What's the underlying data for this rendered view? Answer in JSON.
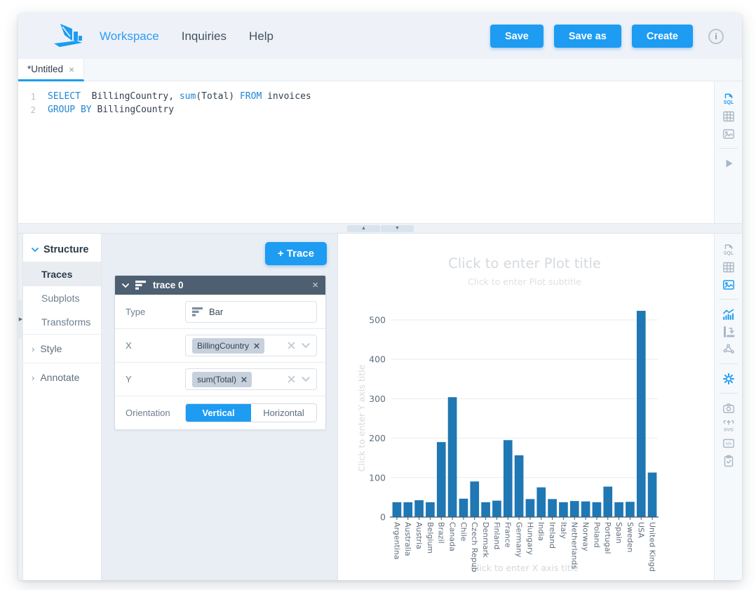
{
  "navbar": {
    "links": [
      {
        "label": "Workspace",
        "active": true
      },
      {
        "label": "Inquiries",
        "active": false
      },
      {
        "label": "Help",
        "active": false
      }
    ],
    "save_label": "Save",
    "save_as_label": "Save as",
    "create_label": "Create"
  },
  "tabs": [
    {
      "label": "*Untitled"
    }
  ],
  "editor": {
    "lines": [
      {
        "number": "1",
        "tokens": [
          {
            "text": "SELECT",
            "type": "kw"
          },
          {
            "text": "  BillingCountry, ",
            "type": "pl"
          },
          {
            "text": "sum",
            "type": "kw"
          },
          {
            "text": "(Total) ",
            "type": "pl"
          },
          {
            "text": "FROM",
            "type": "kw"
          },
          {
            "text": " invoices",
            "type": "pl"
          }
        ]
      },
      {
        "number": "2",
        "tokens": [
          {
            "text": "GROUP BY",
            "type": "kw"
          },
          {
            "text": " BillingCountry",
            "type": "pl"
          }
        ]
      }
    ]
  },
  "icons": {
    "close": "×",
    "chevron_right": "›",
    "collapse_up": "▲",
    "collapse_down": "▼",
    "collapse_right": "▶",
    "info": "i"
  },
  "sidebar": {
    "structure_label": "Structure",
    "items": [
      {
        "label": "Traces",
        "active": true
      },
      {
        "label": "Subplots",
        "active": false
      },
      {
        "label": "Transforms",
        "active": false
      }
    ],
    "style_label": "Style",
    "annotate_label": "Annotate"
  },
  "trace_panel": {
    "add_trace_label": "+ Trace",
    "trace_card": {
      "title": "trace 0",
      "type_label": "Type",
      "type_value": "Bar",
      "x_label": "X",
      "x_chip": "BillingCountry",
      "y_label": "Y",
      "y_chip": "sum(Total)",
      "orientation_label": "Orientation",
      "vertical_label": "Vertical",
      "horizontal_label": "Horizontal",
      "orientation_selected": "Vertical"
    }
  },
  "editor_toolbar": {
    "icons": [
      "sql",
      "table",
      "image",
      "run"
    ],
    "active": "sql"
  },
  "chart_toolbar": {
    "icons": [
      "sql",
      "table",
      "image",
      "traces-chart",
      "subplots",
      "transforms",
      "settings",
      "camera",
      "svg-export",
      "code",
      "clipboard"
    ],
    "active": "image"
  },
  "colors": {
    "accent_blue": "#1d9cf2",
    "bar_blue": "#1f77b4",
    "card_header": "#4d5f71"
  },
  "chart_data": {
    "type": "bar",
    "title_placeholder": "Click to enter Plot title",
    "subtitle_placeholder": "Click to enter Plot subtitle",
    "xlabel_placeholder": "Click to enter X axis title",
    "ylabel_placeholder": "Click to enter Y axis title",
    "categories": [
      "Argentina",
      "Australia",
      "Austria",
      "Belgium",
      "Brazil",
      "Canada",
      "Chile",
      "Czech Republic",
      "Denmark",
      "Finland",
      "France",
      "Germany",
      "Hungary",
      "India",
      "Ireland",
      "Italy",
      "Netherlands",
      "Norway",
      "Poland",
      "Portugal",
      "Spain",
      "Sweden",
      "USA",
      "United Kingdom"
    ],
    "tick_labels": [
      "Argentina",
      "Australia",
      "Austria",
      "Belgium",
      "Brazil",
      "Canada",
      "Chile",
      "Czech Repub",
      "Denmark",
      "Finland",
      "France",
      "Germany",
      "Hungary",
      "India",
      "Ireland",
      "Italy",
      "Netherlands",
      "Norway",
      "Poland",
      "Portugal",
      "Spain",
      "Sweden",
      "USA",
      "United Kingd"
    ],
    "values": [
      37.62,
      37.62,
      42.62,
      37.62,
      190.1,
      303.96,
      46.62,
      90.24,
      37.62,
      41.62,
      195.1,
      156.48,
      45.62,
      75.26,
      45.62,
      37.62,
      40.62,
      39.62,
      37.62,
      77.24,
      37.62,
      38.62,
      523.06,
      112.86
    ],
    "yticks": [
      0,
      100,
      200,
      300,
      400,
      500
    ],
    "ylim": [
      0,
      550
    ],
    "grid": true,
    "legend": false,
    "bar_color": "#1f77b4"
  }
}
